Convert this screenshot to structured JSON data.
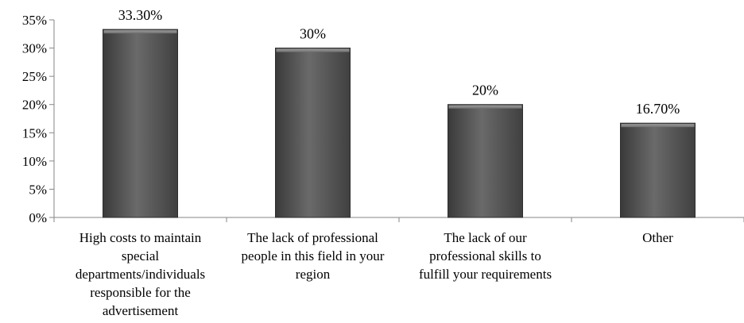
{
  "chart_data": {
    "type": "bar",
    "categories": [
      "High costs to maintain special departments/individuals responsible for the advertisement",
      "The lack of professional people in this field in your region",
      "The lack of our professional skills to fulfill your requirements",
      "Other"
    ],
    "category_lines": [
      [
        "High costs to maintain",
        "special",
        "departments/individuals",
        "responsible for the",
        "advertisement"
      ],
      [
        "The lack of professional",
        "people in this field in your",
        "region"
      ],
      [
        "The lack of our",
        "professional skills to",
        "fulfill your requirements"
      ],
      [
        "Other"
      ]
    ],
    "values": [
      33.3,
      30,
      20,
      16.7
    ],
    "data_labels": [
      "33.30%",
      "30%",
      "20%",
      "16.70%"
    ],
    "y_ticks": [
      "0%",
      "5%",
      "10%",
      "15%",
      "20%",
      "25%",
      "30%",
      "35%"
    ],
    "ylim": [
      0,
      35
    ],
    "title": "",
    "xlabel": "",
    "ylabel": "",
    "grid": false,
    "legend": "none",
    "bar_color": "#5f5f5f"
  }
}
